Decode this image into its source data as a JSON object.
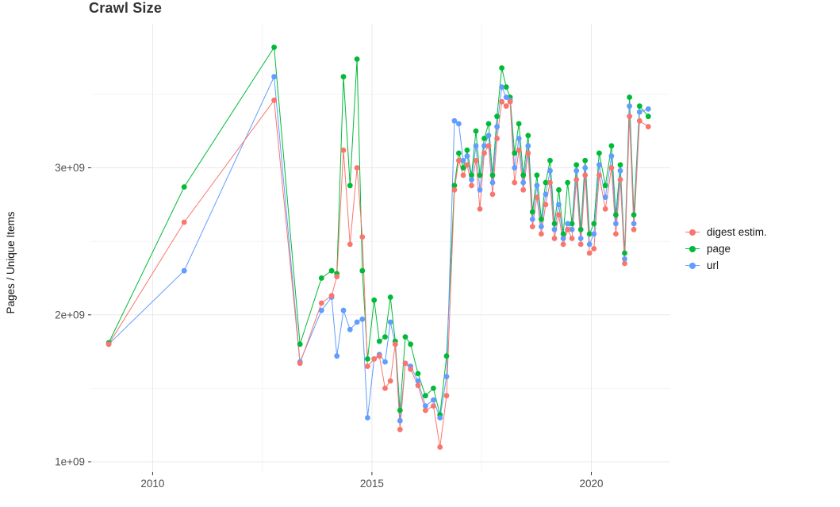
{
  "title": "Crawl Size",
  "chart_data": {
    "type": "line",
    "title": "Crawl Size",
    "xlabel": "",
    "ylabel": "Pages / Unique Items",
    "y_unit": "1e9 (values below are in billions)",
    "grid": true,
    "legend_position": "right",
    "xlim": [
      2008.6,
      2021.8
    ],
    "ylim": [
      0.93,
      3.98
    ],
    "x_axis": {
      "ticks": [
        2010,
        2015,
        2020
      ],
      "labels": [
        "2010",
        "2015",
        "2020"
      ],
      "minor": [
        2012.5,
        2017.5
      ]
    },
    "y_axis": {
      "ticks": [
        1,
        2,
        3
      ],
      "labels": [
        "1e+09",
        "2e+09",
        "3e+09"
      ],
      "minor": [
        1.5,
        2.5,
        3.5
      ]
    },
    "x": [
      2009.0,
      2010.72,
      2012.77,
      2013.36,
      2013.85,
      2014.08,
      2014.2,
      2014.35,
      2014.5,
      2014.66,
      2014.78,
      2014.9,
      2015.05,
      2015.17,
      2015.3,
      2015.42,
      2015.53,
      2015.64,
      2015.76,
      2015.88,
      2016.05,
      2016.22,
      2016.4,
      2016.55,
      2016.7,
      2016.88,
      2016.98,
      2017.08,
      2017.17,
      2017.27,
      2017.37,
      2017.46,
      2017.56,
      2017.66,
      2017.75,
      2017.85,
      2017.96,
      2018.06,
      2018.15,
      2018.25,
      2018.35,
      2018.45,
      2018.56,
      2018.66,
      2018.76,
      2018.86,
      2018.96,
      2019.06,
      2019.16,
      2019.26,
      2019.36,
      2019.46,
      2019.56,
      2019.66,
      2019.76,
      2019.86,
      2019.96,
      2020.06,
      2020.18,
      2020.32,
      2020.46,
      2020.56,
      2020.66,
      2020.76,
      2020.87,
      2020.97,
      2021.1,
      2021.3
    ],
    "series": [
      {
        "name": "digest estim.",
        "color": "#F8766D",
        "values": [
          1.8,
          2.63,
          3.46,
          1.67,
          2.08,
          2.13,
          2.26,
          3.12,
          2.48,
          3.0,
          2.53,
          1.65,
          1.7,
          1.72,
          1.5,
          1.55,
          1.8,
          1.22,
          1.67,
          1.63,
          1.52,
          1.35,
          1.38,
          1.1,
          1.45,
          2.85,
          3.05,
          2.95,
          3.02,
          2.88,
          3.05,
          2.72,
          3.1,
          3.15,
          2.82,
          3.2,
          3.45,
          3.42,
          3.45,
          2.9,
          3.12,
          2.85,
          3.1,
          2.6,
          2.8,
          2.55,
          2.75,
          2.9,
          2.52,
          2.68,
          2.48,
          2.58,
          2.52,
          2.92,
          2.48,
          2.95,
          2.42,
          2.45,
          2.95,
          2.72,
          3.0,
          2.55,
          2.92,
          2.35,
          3.35,
          2.58,
          3.32,
          3.28
        ]
      },
      {
        "name": "page",
        "color": "#00BA38",
        "values": [
          1.81,
          2.87,
          3.82,
          1.8,
          2.25,
          2.3,
          2.28,
          3.62,
          2.88,
          3.74,
          2.3,
          1.7,
          2.1,
          1.82,
          1.85,
          2.12,
          1.82,
          1.35,
          1.85,
          1.8,
          1.6,
          1.45,
          1.5,
          1.32,
          1.72,
          2.88,
          3.1,
          3.0,
          3.12,
          2.95,
          3.25,
          2.95,
          3.2,
          3.3,
          2.95,
          3.35,
          3.68,
          3.55,
          3.48,
          3.1,
          3.3,
          2.95,
          3.22,
          2.7,
          2.95,
          2.65,
          2.9,
          3.05,
          2.62,
          2.85,
          2.55,
          2.9,
          2.62,
          3.02,
          2.58,
          3.05,
          2.55,
          2.62,
          3.1,
          2.88,
          3.15,
          2.68,
          3.02,
          2.42,
          3.48,
          2.68,
          3.42,
          3.35
        ]
      },
      {
        "name": "url",
        "color": "#619CFF",
        "values": [
          1.8,
          2.3,
          3.62,
          1.68,
          2.03,
          2.12,
          1.72,
          2.03,
          1.9,
          1.95,
          1.97,
          1.3,
          1.7,
          1.73,
          1.68,
          1.95,
          1.8,
          1.28,
          1.67,
          1.65,
          1.55,
          1.38,
          1.42,
          1.3,
          1.58,
          3.32,
          3.3,
          3.05,
          3.08,
          2.92,
          3.15,
          2.85,
          3.15,
          3.22,
          2.9,
          3.28,
          3.55,
          3.48,
          3.46,
          3.0,
          3.2,
          2.9,
          3.15,
          2.65,
          2.88,
          2.6,
          2.82,
          2.98,
          2.58,
          2.75,
          2.52,
          2.62,
          2.58,
          2.98,
          2.52,
          3.0,
          2.48,
          2.55,
          3.02,
          2.8,
          3.08,
          2.62,
          2.98,
          2.38,
          3.42,
          2.62,
          3.38,
          3.4
        ]
      }
    ]
  }
}
